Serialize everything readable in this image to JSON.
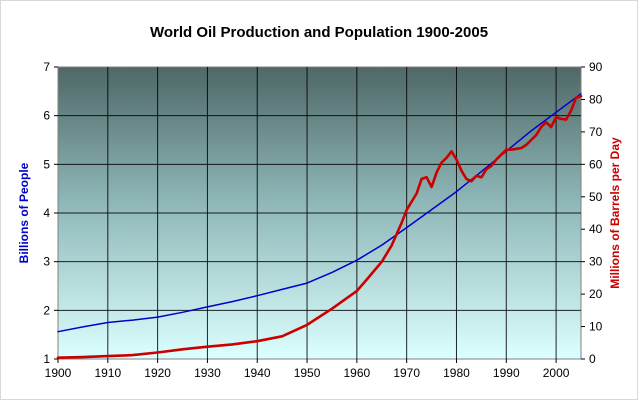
{
  "chart_data": {
    "type": "line",
    "title": "World Oil Production and Population 1900-2005",
    "xlabel": "",
    "xlim": [
      1900,
      2005
    ],
    "x_ticks": [
      1900,
      1910,
      1920,
      1930,
      1940,
      1950,
      1960,
      1970,
      1980,
      1990,
      2000
    ],
    "grid": true,
    "legend": "none",
    "y_left": {
      "label": "Billions of People",
      "lim": [
        1,
        7
      ],
      "ticks": [
        1,
        2,
        3,
        4,
        5,
        6,
        7
      ],
      "color": "#0000CC"
    },
    "y_right": {
      "label": "Millions of Barrels per Day",
      "lim": [
        0,
        90
      ],
      "ticks": [
        0,
        10,
        20,
        30,
        40,
        50,
        60,
        70,
        80,
        90
      ],
      "color": "#CC0000"
    },
    "series": [
      {
        "axis": "left",
        "color": "#0000CC",
        "points": [
          [
            1900,
            1.56
          ],
          [
            1905,
            1.66
          ],
          [
            1910,
            1.75
          ],
          [
            1915,
            1.8
          ],
          [
            1920,
            1.86
          ],
          [
            1925,
            1.96
          ],
          [
            1930,
            2.07
          ],
          [
            1935,
            2.18
          ],
          [
            1940,
            2.3
          ],
          [
            1945,
            2.43
          ],
          [
            1950,
            2.56
          ],
          [
            1955,
            2.78
          ],
          [
            1960,
            3.03
          ],
          [
            1965,
            3.34
          ],
          [
            1970,
            3.7
          ],
          [
            1975,
            4.07
          ],
          [
            1980,
            4.44
          ],
          [
            1985,
            4.85
          ],
          [
            1990,
            5.27
          ],
          [
            1995,
            5.69
          ],
          [
            2000,
            6.07
          ],
          [
            2005,
            6.45
          ]
        ]
      },
      {
        "axis": "right",
        "color": "#CC0000",
        "points": [
          [
            1900,
            0.4
          ],
          [
            1905,
            0.6
          ],
          [
            1910,
            0.9
          ],
          [
            1915,
            1.2
          ],
          [
            1920,
            2.0
          ],
          [
            1925,
            3.0
          ],
          [
            1930,
            3.8
          ],
          [
            1935,
            4.5
          ],
          [
            1940,
            5.5
          ],
          [
            1945,
            7.0
          ],
          [
            1950,
            10.5
          ],
          [
            1955,
            15.5
          ],
          [
            1960,
            21.0
          ],
          [
            1962,
            24.5
          ],
          [
            1965,
            30.0
          ],
          [
            1967,
            35.0
          ],
          [
            1969,
            42.0
          ],
          [
            1970,
            46.0
          ],
          [
            1972,
            51.0
          ],
          [
            1973,
            55.5
          ],
          [
            1974,
            56.0
          ],
          [
            1975,
            53.0
          ],
          [
            1976,
            57.5
          ],
          [
            1977,
            60.5
          ],
          [
            1978,
            62.0
          ],
          [
            1979,
            64.0
          ],
          [
            1980,
            61.5
          ],
          [
            1981,
            58.0
          ],
          [
            1982,
            55.5
          ],
          [
            1983,
            54.8
          ],
          [
            1984,
            56.5
          ],
          [
            1985,
            56.0
          ],
          [
            1986,
            58.5
          ],
          [
            1987,
            59.5
          ],
          [
            1988,
            61.5
          ],
          [
            1989,
            63.0
          ],
          [
            1990,
            64.5
          ],
          [
            1991,
            64.5
          ],
          [
            1992,
            64.8
          ],
          [
            1993,
            65.0
          ],
          [
            1994,
            66.0
          ],
          [
            1995,
            67.5
          ],
          [
            1996,
            69.0
          ],
          [
            1997,
            71.5
          ],
          [
            1998,
            73.0
          ],
          [
            1999,
            71.5
          ],
          [
            2000,
            74.5
          ],
          [
            2001,
            74.0
          ],
          [
            2002,
            73.8
          ],
          [
            2003,
            76.5
          ],
          [
            2004,
            80.5
          ],
          [
            2005,
            81.0
          ]
        ]
      }
    ]
  }
}
